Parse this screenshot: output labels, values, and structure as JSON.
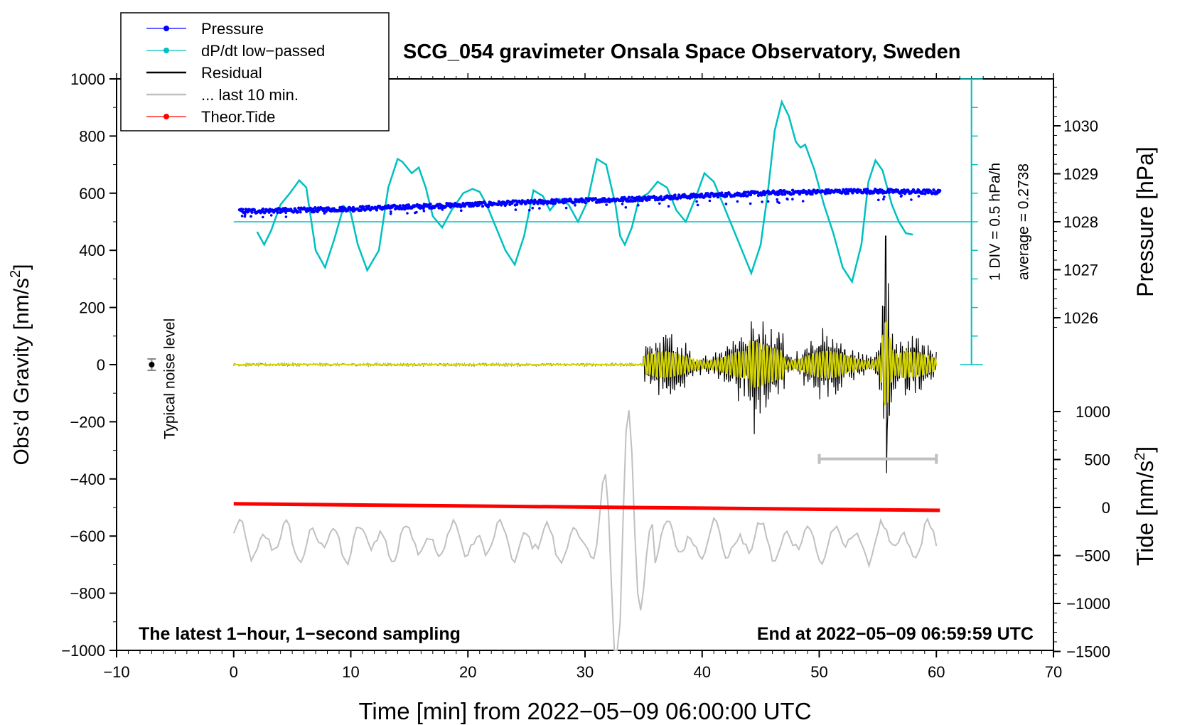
{
  "chart_data": {
    "type": "line",
    "title": "SCG_054 gravimeter Onsala Space Observatory, Sweden",
    "xlabel": "Time [min] from 2022−05−09 06:00:00 UTC",
    "ylabel_left": "Obs’d Gravity [nm/s",
    "ylabel_left_sup": "2",
    "ylabel_left_close": "]",
    "ylabel_right_pressure": "Pressure [hPa]",
    "ylabel_right_tide": "Tide [nm/s",
    "ylabel_right_tide_sup": "2",
    "ylabel_right_tide_close": "]",
    "xlim": [
      -10,
      70
    ],
    "ylim_left": [
      -1000,
      1000
    ],
    "pressure_range": [
      1025,
      1031
    ],
    "tide_range": [
      -1500,
      1500
    ],
    "x_ticks": [
      -10,
      0,
      10,
      20,
      30,
      40,
      50,
      60,
      70
    ],
    "x_tick_labels": [
      "−10",
      "0",
      "10",
      "20",
      "30",
      "40",
      "50",
      "60",
      "70"
    ],
    "y_ticks_left": [
      1000,
      800,
      600,
      400,
      200,
      0,
      -200,
      -400,
      -600,
      -800,
      -1000
    ],
    "y_tick_labels_left": [
      "1000",
      "800",
      "600",
      "400",
      "200",
      "0",
      "−200",
      "−400",
      "−600",
      "−800",
      "−1000"
    ],
    "pressure_ticks": [
      1030,
      1029,
      1028,
      1027,
      1026
    ],
    "pressure_tick_labels": [
      "1030",
      "1029",
      "1028",
      "1027",
      "1026"
    ],
    "tide_ticks": [
      1000,
      500,
      0,
      -500,
      -1000,
      -1500
    ],
    "tide_tick_labels": [
      "1000",
      "500",
      "0",
      "−500",
      "−1000",
      "−1500"
    ],
    "legend": [
      {
        "label": "Pressure",
        "color": "#0000ff",
        "marker": true
      },
      {
        "label": "dP/dt low−passed",
        "color": "#00c0c0",
        "marker": true
      },
      {
        "label": "Residual",
        "color": "#000000",
        "marker": false
      },
      {
        "label": "... last 10 min.",
        "color": "#c0c0c0",
        "marker": false
      },
      {
        "label": "Theor.Tide",
        "color": "#ff0000",
        "marker": true
      }
    ],
    "series": [
      {
        "name": "Pressure",
        "color": "#0000ff",
        "x_range": [
          0.5,
          60.3
        ],
        "values_hpa": [
          1028.22,
          1028.25,
          1028.3,
          1028.36,
          1028.42,
          1028.47,
          1028.55,
          1028.61,
          1028.64,
          1028.62
        ]
      },
      {
        "name": "dP/dt low-passed",
        "color": "#00c0c0",
        "x": [
          2,
          2.6,
          3.2,
          4,
          4.8,
          5.6,
          6.2,
          7,
          7.8,
          8.6,
          9.4,
          10,
          10.6,
          11.4,
          12.4,
          13.2,
          14,
          14.4,
          15.2,
          15.8,
          16.4,
          17,
          17.8,
          18.6,
          19.6,
          20.4,
          21,
          21.6,
          22.4,
          23.2,
          24,
          24.8,
          25.6,
          26.4,
          27,
          27.8,
          28.6,
          29.4,
          30.2,
          31,
          31.8,
          32.6,
          33,
          33.4,
          34,
          34.6,
          35.4,
          36.2,
          37,
          37.8,
          38.6,
          39.4,
          40.2,
          41,
          41.8,
          42.6,
          43.4,
          44.2,
          45,
          45.6,
          46.2,
          46.8,
          47.4,
          48,
          48.4,
          48.8,
          49.6,
          50.4,
          51.2,
          52,
          52.8,
          53.6,
          54.2,
          54.8,
          55.4,
          56.2,
          56.8,
          57.4,
          58
        ],
        "values_gravity": [
          465,
          420,
          470,
          560,
          600,
          645,
          620,
          400,
          340,
          440,
          555,
          530,
          420,
          330,
          400,
          620,
          720,
          710,
          670,
          690,
          620,
          520,
          480,
          540,
          600,
          615,
          605,
          560,
          480,
          400,
          350,
          450,
          610,
          590,
          540,
          580,
          560,
          500,
          570,
          720,
          700,
          560,
          450,
          420,
          480,
          580,
          600,
          640,
          620,
          540,
          500,
          580,
          670,
          640,
          560,
          480,
          400,
          320,
          420,
          600,
          820,
          920,
          870,
          780,
          760,
          770,
          680,
          560,
          460,
          340,
          290,
          420,
          640,
          715,
          680,
          560,
          500,
          460,
          455
        ]
      },
      {
        "name": "Residual",
        "color": "#000000",
        "x_range": [
          0,
          60
        ],
        "event_start_min": 35,
        "peak_min": 55.7,
        "peak_max": 450,
        "peak_min_value": -380
      },
      {
        "name": "... last 10 min.",
        "color": "#c0c0c0",
        "x_range": [
          0,
          60
        ],
        "offset_gravity": -620,
        "peak_max": -160,
        "peak_min": -1000
      },
      {
        "name": "Theor.Tide",
        "color": "#ff0000",
        "x_range": [
          0,
          60.3
        ],
        "values_gravity": [
          -487,
          -510
        ]
      }
    ],
    "pressure_baseline_gravity": 500,
    "pressure_scale_bar": {
      "x_min": 63,
      "from_gravity": 0,
      "to_gravity": 1000,
      "label": "1 DIV = 0.5 hPa/h"
    },
    "average_label": "average = 0.2738",
    "noise_label": "Typical noise level",
    "noise_marker": {
      "x_min": -7,
      "y_gravity": 0,
      "err": 20
    },
    "ten_min_bar": {
      "x_from": 50,
      "x_to": 60,
      "y_gravity": -330
    },
    "annotation_left": "The latest 1−hour, 1−second sampling",
    "annotation_right": "End at 2022−05−09 06:59:59 UTC"
  }
}
